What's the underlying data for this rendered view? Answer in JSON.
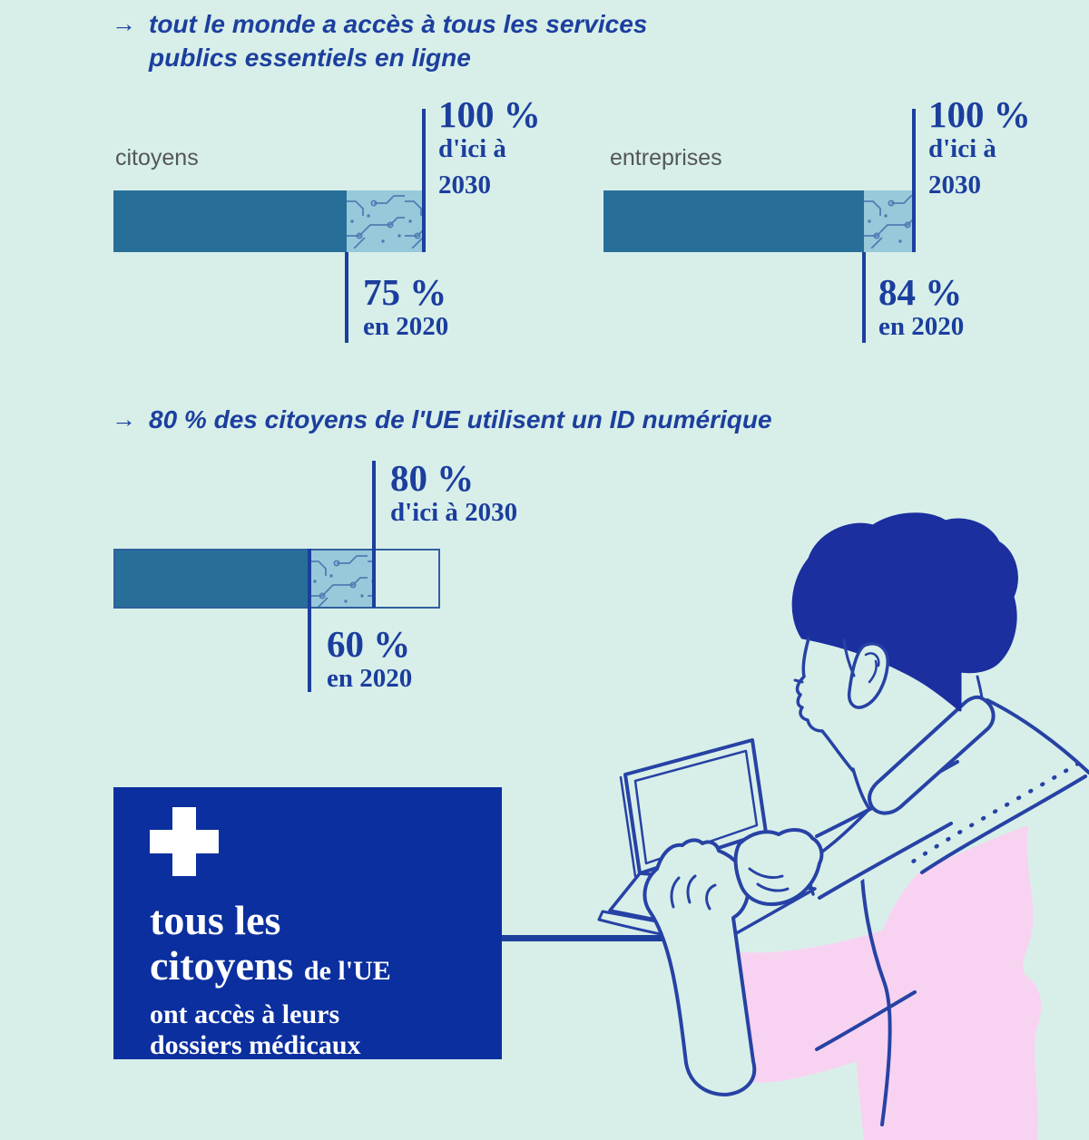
{
  "colors": {
    "background": "#d8efe9",
    "navy": "#1c3f9e",
    "bar_teal": "#276f99",
    "texture_base": "#98c9da",
    "texture_line": "#4e7db4",
    "box_blue": "#0b2f9e",
    "pink": "#f8d3f1",
    "label_gray": "#54565a",
    "white": "#ffffff",
    "illustration_stroke": "#2742a5"
  },
  "goal_services": {
    "arrow": "→",
    "title_line1": "tout le monde a accès à tous les services",
    "title_line2": "publics essentiels en ligne",
    "charts": [
      {
        "label": "citoyens",
        "now_value": "75 %",
        "now_caption": "en 2020",
        "target_value": "100 %",
        "target_caption_line1": "d'ici à",
        "target_caption_line2": "2030"
      },
      {
        "label": "entreprises",
        "now_value": "84 %",
        "now_caption": "en 2020",
        "target_value": "100 %",
        "target_caption_line1": "d'ici à",
        "target_caption_line2": "2030"
      }
    ]
  },
  "goal_eid": {
    "arrow": "→",
    "title": "80 % des citoyens de l'UE utilisent un ID numérique",
    "chart": {
      "now_value": "60 %",
      "now_caption": "en 2020",
      "target_value": "80 %",
      "target_caption": "d'ici à 2030"
    }
  },
  "health_box": {
    "icon": "medical-cross",
    "line1": "tous les",
    "line2_big": "citoyens",
    "line2_small": "de l'UE",
    "line3": "ont accès à leurs",
    "line4": "dossiers médicaux"
  },
  "chart_data": [
    {
      "type": "bar",
      "title": "tout le monde a accès à tous les services publics essentiels en ligne",
      "categories": [
        "citoyens",
        "entreprises"
      ],
      "series": [
        {
          "name": "en 2020",
          "values": [
            75,
            84
          ]
        },
        {
          "name": "d'ici à 2030",
          "values": [
            100,
            100
          ]
        }
      ],
      "unit": "%",
      "xlim": [
        0,
        100
      ],
      "orientation": "horizontal",
      "grid": false
    },
    {
      "type": "bar",
      "title": "80 % des citoyens de l'UE utilisent un ID numérique",
      "categories": [
        "citoyens de l'UE"
      ],
      "series": [
        {
          "name": "en 2020",
          "values": [
            60
          ]
        },
        {
          "name": "d'ici à 2030",
          "values": [
            80
          ]
        }
      ],
      "unit": "%",
      "xlim": [
        0,
        100
      ],
      "orientation": "horizontal",
      "grid": false
    }
  ]
}
